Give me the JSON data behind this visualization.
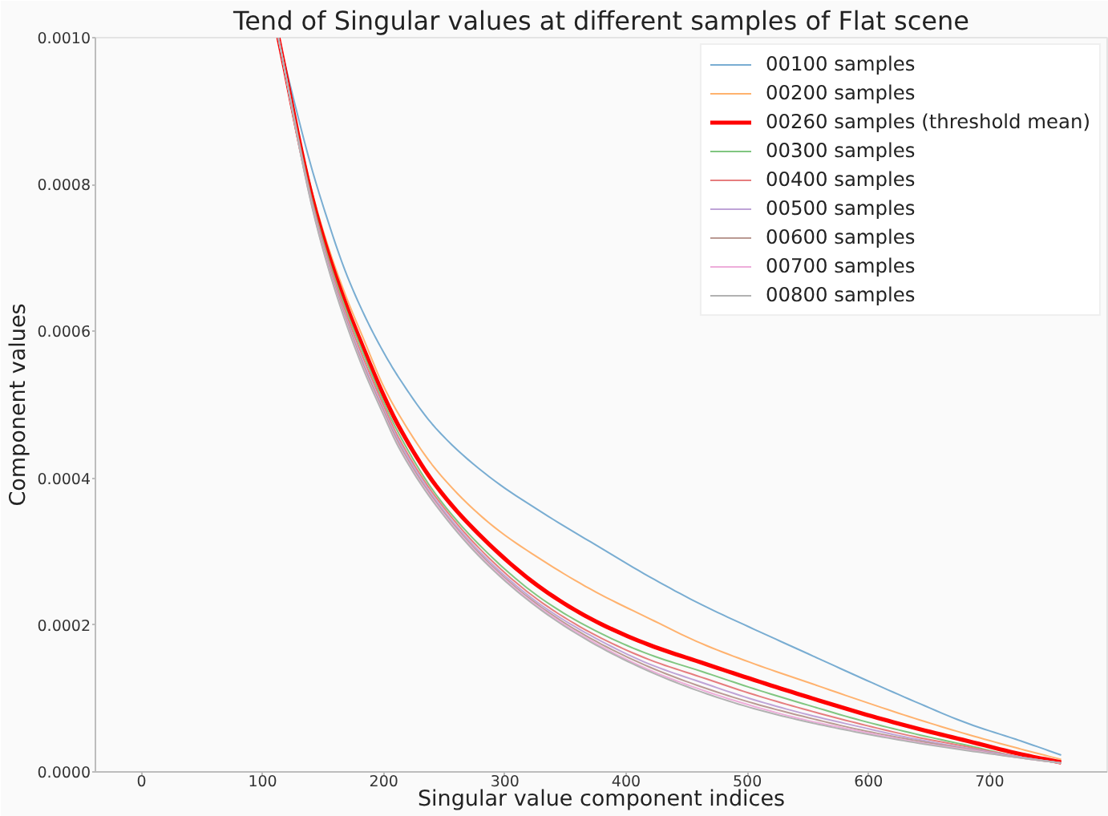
{
  "chart_data": {
    "type": "line",
    "title": "Tend of Singular values at different samples of Flat scene",
    "xlabel": "Singular value component indices",
    "ylabel": "Component values",
    "xlim": [
      -38,
      797
    ],
    "ylim": [
      0,
      0.001
    ],
    "xticks": [
      0,
      100,
      200,
      300,
      400,
      500,
      600,
      700
    ],
    "yticks": [
      {
        "value": 0,
        "label": "0.0000"
      },
      0.0002,
      0.0004,
      0.0006,
      0.0008,
      {
        "value": 0.001,
        "label": "0.0010"
      }
    ],
    "grid": false,
    "legend": "top right",
    "x": [
      113,
      140,
      153,
      168,
      184,
      199,
      212,
      243,
      287,
      331,
      375,
      419,
      462,
      506,
      550,
      594,
      638,
      682,
      726,
      759
    ],
    "series": [
      {
        "name": "00100 samples",
        "color": "#79add2",
        "values": [
          0.001,
          0.000825,
          0.000755,
          0.000683,
          0.000622,
          0.000574,
          0.000538,
          0.000468,
          0.000402,
          0.000353,
          0.000309,
          0.000266,
          0.000228,
          0.000194,
          0.000161,
          0.000128,
          9.6e-05,
          6.6e-05,
          4.2e-05,
          2.3e-05
        ]
      },
      {
        "name": "00200 samples",
        "color": "#ffb26e",
        "values": [
          0.001,
          0.000795,
          0.000721,
          0.000651,
          0.000587,
          0.000528,
          0.000488,
          0.000412,
          0.000339,
          0.000288,
          0.000245,
          0.000209,
          0.000175,
          0.000147,
          0.000122,
          9.7e-05,
          7.3e-05,
          5.1e-05,
          3.1e-05,
          1.7e-05
        ]
      },
      {
        "name": "00260 samples (threshold mean)",
        "color": "#ff0000",
        "values": [
          0.001,
          0.000788,
          0.000712,
          0.00064,
          0.000574,
          0.000516,
          0.000472,
          0.00039,
          0.00031,
          0.000249,
          0.000205,
          0.000173,
          0.000149,
          0.000125,
          0.000102,
          8e-05,
          6e-05,
          4.2e-05,
          2.4e-05,
          1.3e-05
        ]
      },
      {
        "name": "00300 samples",
        "color": "#80c680",
        "values": [
          0.001,
          0.000784,
          0.000706,
          0.000633,
          0.000566,
          0.000507,
          0.000462,
          0.000378,
          0.000296,
          0.000235,
          0.000192,
          0.00016,
          0.000137,
          0.000113,
          9.1e-05,
          7e-05,
          5.2e-05,
          3.6e-05,
          2e-05,
          1.2e-05
        ]
      },
      {
        "name": "00400 samples",
        "color": "#e67d7e",
        "values": [
          0.001,
          0.000781,
          0.000702,
          0.000628,
          0.00056,
          0.000502,
          0.000456,
          0.000374,
          0.000291,
          0.00023,
          0.000186,
          0.000153,
          0.000129,
          0.000105,
          8.4e-05,
          6.5e-05,
          4.8e-05,
          3.4e-05,
          2e-05,
          1.2e-05
        ]
      },
      {
        "name": "00500 samples",
        "color": "#bfa4d7",
        "values": [
          0.001,
          0.000779,
          0.000699,
          0.000623,
          0.000554,
          0.000497,
          0.000452,
          0.00037,
          0.000287,
          0.000226,
          0.000182,
          0.000147,
          0.000122,
          9.8e-05,
          7.8e-05,
          6.1e-05,
          4.5e-05,
          3.2e-05,
          2e-05,
          1.2e-05
        ]
      },
      {
        "name": "00600 samples",
        "color": "#ba9a93",
        "values": [
          0.001,
          0.000777,
          0.000696,
          0.00062,
          0.00055,
          0.000494,
          0.000448,
          0.000367,
          0.000284,
          0.000223,
          0.000178,
          0.000143,
          0.000116,
          9.3e-05,
          7.4e-05,
          5.7e-05,
          4.3e-05,
          3.1e-05,
          1.9e-05,
          1.2e-05
        ]
      },
      {
        "name": "00700 samples",
        "color": "#eeadda",
        "values": [
          0.001,
          0.000776,
          0.000694,
          0.000617,
          0.000547,
          0.000491,
          0.000445,
          0.000365,
          0.000282,
          0.000221,
          0.000175,
          0.000139,
          0.000112,
          8.9e-05,
          7e-05,
          5.5e-05,
          4.1e-05,
          3e-05,
          1.9e-05,
          1.2e-05
        ]
      },
      {
        "name": "00800 samples",
        "color": "#b2b2b2",
        "values": [
          0.001,
          0.000775,
          0.000693,
          0.000615,
          0.000545,
          0.000489,
          0.000443,
          0.000363,
          0.00028,
          0.000219,
          0.000173,
          0.000137,
          0.000109,
          8.6e-05,
          6.8e-05,
          5.3e-05,
          4e-05,
          2.9e-05,
          1.9e-05,
          1.2e-05
        ]
      }
    ]
  }
}
